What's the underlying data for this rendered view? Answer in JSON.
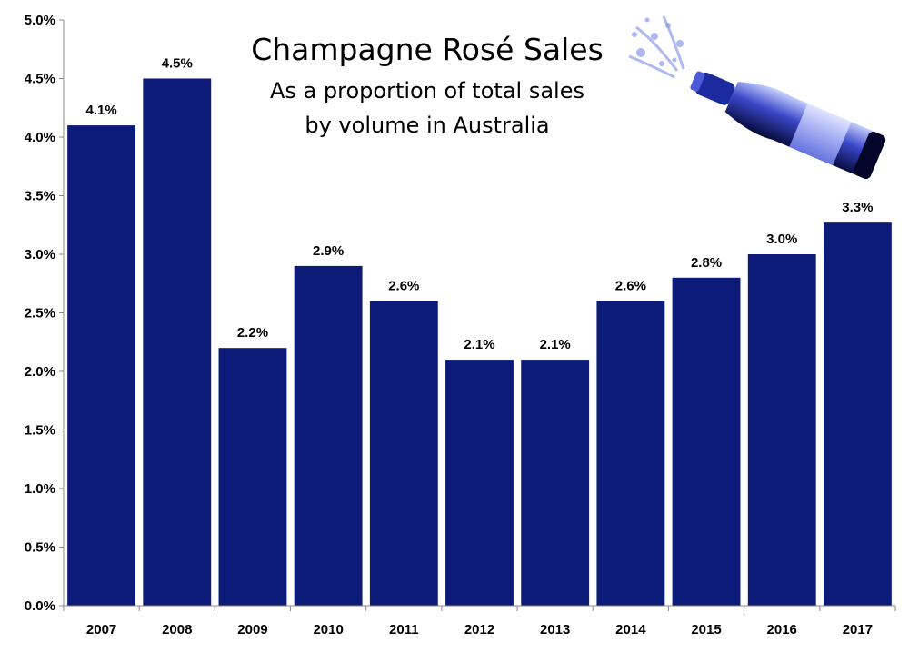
{
  "chart_data": {
    "type": "bar",
    "title": "Champagne Rosé Sales",
    "subtitle_lines": [
      "As a proportion of total sales",
      "by volume in Australia"
    ],
    "categories": [
      "2007",
      "2008",
      "2009",
      "2010",
      "2011",
      "2012",
      "2013",
      "2014",
      "2015",
      "2016",
      "2017"
    ],
    "values": [
      4.1,
      4.5,
      2.2,
      2.9,
      2.6,
      2.1,
      2.1,
      2.6,
      2.8,
      3.0,
      3.27
    ],
    "data_labels": [
      "4.1%",
      "4.5%",
      "2.2%",
      "2.9%",
      "2.6%",
      "2.1%",
      "2.1%",
      "2.6%",
      "2.8%",
      "3.0%",
      "3.3%"
    ],
    "yticks": [
      "0.0%",
      "0.5%",
      "1.0%",
      "1.5%",
      "2.0%",
      "2.5%",
      "3.0%",
      "3.5%",
      "4.0%",
      "4.5%",
      "5.0%"
    ],
    "ylim": [
      0,
      5
    ],
    "xlabel": "",
    "ylabel": "",
    "grid": false,
    "legend": "none",
    "bar_color": "#0c1a78",
    "decoration": "champagne-bottle-icon"
  }
}
